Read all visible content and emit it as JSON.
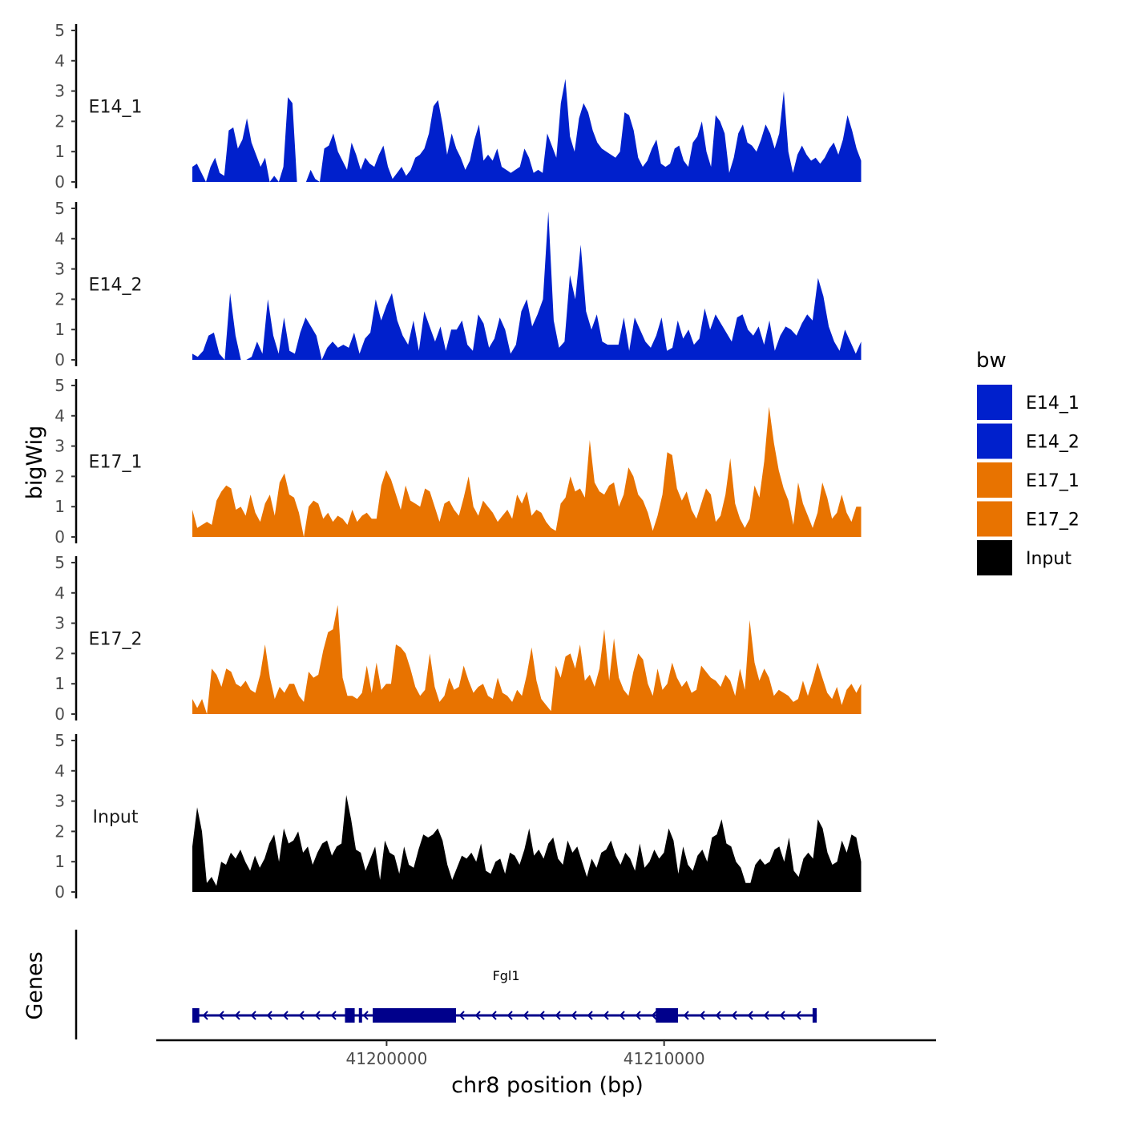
{
  "chart_data": {
    "type": "area",
    "title": "",
    "xlabel": "chr8 position (bp)",
    "ylabel": "bigWig",
    "xlim": [
      41191700,
      41219800
    ],
    "ylim": [
      0,
      5
    ],
    "y_ticks": [
      "0",
      "1",
      "2",
      "3",
      "4",
      "5"
    ],
    "x_ticks": [
      {
        "value": 41200000,
        "label": "41200000"
      },
      {
        "value": 41210000,
        "label": "41210000"
      }
    ],
    "data_range": [
      41193000,
      41217100
    ],
    "legend": {
      "title": "bw",
      "position": "right",
      "entries": [
        {
          "label": "E14_1",
          "color": "#0020CC"
        },
        {
          "label": "E14_2",
          "color": "#0020CC"
        },
        {
          "label": "E17_1",
          "color": "#E87300"
        },
        {
          "label": "E17_2",
          "color": "#E87300"
        },
        {
          "label": "Input",
          "color": "#000000"
        }
      ]
    },
    "series": [
      {
        "name": "E14_1",
        "color": "#0020CC",
        "values": [
          0.5,
          0.6,
          0.3,
          0,
          0.5,
          0.8,
          0.3,
          0.2,
          1.7,
          1.8,
          1.1,
          1.4,
          2.1,
          1.3,
          0.9,
          0.5,
          0.8,
          0,
          0.2,
          0,
          0.5,
          2.8,
          2.6,
          0,
          0,
          0,
          0.4,
          0.1,
          0,
          1.1,
          1.2,
          1.6,
          1.0,
          0.7,
          0.4,
          1.3,
          0.9,
          0.4,
          0.8,
          0.6,
          0.5,
          0.9,
          1.2,
          0.5,
          0.1,
          0.3,
          0.5,
          0.2,
          0.4,
          0.8,
          0.9,
          1.1,
          1.6,
          2.5,
          2.7,
          1.9,
          0.9,
          1.6,
          1.1,
          0.8,
          0.4,
          0.7,
          1.4,
          1.9,
          0.7,
          0.9,
          0.7,
          1.1,
          0.5,
          0.4,
          0.3,
          0.4,
          0.5,
          1.1,
          0.8,
          0.3,
          0.4,
          0.3,
          1.6,
          1.2,
          0.8,
          2.6,
          3.4,
          1.5,
          1.0,
          2.1,
          2.6,
          2.3,
          1.7,
          1.3,
          1.1,
          1.0,
          0.9,
          0.8,
          1.0,
          2.3,
          2.2,
          1.7,
          0.8,
          0.5,
          0.7,
          1.1,
          1.4,
          0.6,
          0.5,
          0.6,
          1.1,
          1.2,
          0.7,
          0.5,
          1.3,
          1.5,
          2.0,
          1.0,
          0.5,
          2.2,
          2.0,
          1.6,
          0.3,
          0.8,
          1.6,
          1.9,
          1.3,
          1.2,
          1.0,
          1.4,
          1.9,
          1.6,
          1.1,
          1.6,
          3.0,
          1.0,
          0.3,
          0.9,
          1.2,
          0.9,
          0.7,
          0.8,
          0.6,
          0.8,
          1.1,
          1.3,
          0.9,
          1.4,
          2.2,
          1.7,
          1.1,
          0.7
        ],
        "label": "E14_1"
      },
      {
        "name": "E14_2",
        "color": "#0020CC",
        "values": [
          0.2,
          0.1,
          0.3,
          0.8,
          0.9,
          0.2,
          0,
          2.2,
          0.8,
          0,
          0,
          0.1,
          0.6,
          0.2,
          2.0,
          0.8,
          0.2,
          1.4,
          0.3,
          0.2,
          0.9,
          1.4,
          1.1,
          0.8,
          0,
          0.4,
          0.6,
          0.4,
          0.5,
          0.4,
          0.9,
          0.2,
          0.7,
          0.9,
          2.0,
          1.3,
          1.8,
          2.2,
          1.3,
          0.8,
          0.5,
          1.3,
          0.3,
          1.6,
          1.1,
          0.6,
          1.1,
          0.3,
          1.0,
          1.0,
          1.3,
          0.5,
          0.3,
          1.5,
          1.2,
          0.4,
          0.7,
          1.4,
          1.0,
          0.2,
          0.5,
          1.6,
          2.0,
          1.1,
          1.5,
          2.0,
          4.9,
          1.3,
          0.4,
          0.6,
          2.8,
          2.0,
          3.8,
          1.6,
          1.0,
          1.5,
          0.6,
          0.5,
          0.5,
          0.5,
          1.4,
          0.3,
          1.4,
          1.0,
          0.6,
          0.4,
          0.8,
          1.4,
          0.3,
          0.4,
          1.3,
          0.7,
          1.0,
          0.5,
          0.7,
          1.7,
          1.0,
          1.5,
          1.2,
          0.9,
          0.6,
          1.4,
          1.5,
          1.0,
          0.8,
          1.1,
          0.5,
          1.3,
          0.3,
          0.8,
          1.1,
          1.0,
          0.8,
          1.2,
          1.5,
          1.3,
          2.7,
          2.1,
          1.1,
          0.6,
          0.3,
          1.0,
          0.6,
          0.2,
          0.6
        ],
        "label": "E14_2"
      },
      {
        "name": "E17_1",
        "color": "#E87300",
        "values": [
          0.9,
          0.3,
          0.4,
          0.5,
          0.4,
          1.2,
          1.5,
          1.7,
          1.6,
          0.9,
          1.0,
          0.7,
          1.4,
          0.8,
          0.5,
          1.1,
          1.4,
          0.7,
          1.8,
          2.1,
          1.4,
          1.3,
          0.8,
          0,
          1.0,
          1.2,
          1.1,
          0.6,
          0.8,
          0.5,
          0.7,
          0.6,
          0.4,
          0.9,
          0.5,
          0.7,
          0.8,
          0.6,
          0.6,
          1.7,
          2.2,
          1.9,
          1.4,
          0.9,
          1.7,
          1.2,
          1.1,
          1.0,
          1.6,
          1.5,
          1.0,
          0.5,
          1.1,
          1.2,
          0.9,
          0.7,
          1.3,
          2.0,
          1.0,
          0.7,
          1.2,
          1.0,
          0.8,
          0.5,
          0.7,
          0.9,
          0.6,
          1.4,
          1.1,
          1.5,
          0.7,
          0.9,
          0.8,
          0.5,
          0.3,
          0.2,
          1.1,
          1.3,
          2.0,
          1.5,
          1.6,
          1.3,
          3.2,
          1.8,
          1.5,
          1.4,
          1.7,
          1.8,
          1.0,
          1.4,
          2.3,
          2.0,
          1.4,
          1.2,
          0.8,
          0.2,
          0.7,
          1.4,
          2.8,
          2.7,
          1.6,
          1.2,
          1.5,
          0.9,
          0.6,
          1.1,
          1.6,
          1.4,
          0.5,
          0.7,
          1.4,
          2.6,
          1.1,
          0.6,
          0.3,
          0.6,
          1.7,
          1.3,
          2.5,
          4.3,
          3.1,
          2.2,
          1.6,
          1.2,
          0.4,
          1.8,
          1.1,
          0.7,
          0.3,
          0.8,
          1.8,
          1.3,
          0.6,
          0.8,
          1.4,
          0.8,
          0.5,
          1.0,
          1.0
        ],
        "label": "E17_1"
      },
      {
        "name": "E17_2",
        "color": "#E87300",
        "values": [
          0.5,
          0.2,
          0.5,
          0,
          1.5,
          1.3,
          0.9,
          1.5,
          1.4,
          1.0,
          0.9,
          1.1,
          0.8,
          0.7,
          1.3,
          2.3,
          1.2,
          0.5,
          0.9,
          0.7,
          1.0,
          1.0,
          0.6,
          0.4,
          1.4,
          1.2,
          1.3,
          2.1,
          2.7,
          2.8,
          3.6,
          1.2,
          0.6,
          0.6,
          0.5,
          0.7,
          1.6,
          0.7,
          1.7,
          0.8,
          1.0,
          1.0,
          2.3,
          2.2,
          2.0,
          1.5,
          0.9,
          0.6,
          0.8,
          2.0,
          0.9,
          0.4,
          0.6,
          1.2,
          0.8,
          0.9,
          1.6,
          1.1,
          0.7,
          0.9,
          1.0,
          0.6,
          0.5,
          1.2,
          0.7,
          0.6,
          0.4,
          0.8,
          0.6,
          1.3,
          2.2,
          1.1,
          0.5,
          0.3,
          0.1,
          1.6,
          1.2,
          1.9,
          2.0,
          1.5,
          2.3,
          1.1,
          1.3,
          0.9,
          1.5,
          2.8,
          1.1,
          2.5,
          1.2,
          0.8,
          0.6,
          1.4,
          2.0,
          1.8,
          1.0,
          0.6,
          1.5,
          0.8,
          1.0,
          1.7,
          1.2,
          0.9,
          1.1,
          0.7,
          0.8,
          1.6,
          1.4,
          1.2,
          1.1,
          0.9,
          1.3,
          1.1,
          0.6,
          1.5,
          0.8,
          3.1,
          1.7,
          1.1,
          1.5,
          1.2,
          0.6,
          0.8,
          0.7,
          0.6,
          0.4,
          0.5,
          1.1,
          0.6,
          1.1,
          1.7,
          1.2,
          0.7,
          0.5,
          0.9,
          0.3,
          0.8,
          1.0,
          0.7,
          1.0
        ],
        "label": "E17_2"
      },
      {
        "name": "Input",
        "color": "#000000",
        "values": [
          1.5,
          2.8,
          2.0,
          0.3,
          0.5,
          0.2,
          1.0,
          0.9,
          1.3,
          1.1,
          1.4,
          1.0,
          0.7,
          1.2,
          0.8,
          1.1,
          1.6,
          1.9,
          1.0,
          2.1,
          1.6,
          1.7,
          2.0,
          1.3,
          1.5,
          0.9,
          1.3,
          1.6,
          1.7,
          1.2,
          1.5,
          1.6,
          3.2,
          2.4,
          1.4,
          1.3,
          0.7,
          1.1,
          1.5,
          0.4,
          1.7,
          1.3,
          1.2,
          0.6,
          1.5,
          0.9,
          0.8,
          1.4,
          1.9,
          1.8,
          1.9,
          2.1,
          1.7,
          0.9,
          0.4,
          0.8,
          1.2,
          1.1,
          1.3,
          1.0,
          1.6,
          0.7,
          0.6,
          1.0,
          1.1,
          0.6,
          1.3,
          1.2,
          0.9,
          1.4,
          2.1,
          1.2,
          1.4,
          1.1,
          1.6,
          1.8,
          1.1,
          0.9,
          1.7,
          1.3,
          1.5,
          1.0,
          0.5,
          1.1,
          0.8,
          1.3,
          1.4,
          1.7,
          1.2,
          0.9,
          1.3,
          1.1,
          0.7,
          1.6,
          0.8,
          1.0,
          1.4,
          1.1,
          1.3,
          2.1,
          1.7,
          0.6,
          1.5,
          0.9,
          0.7,
          1.2,
          1.4,
          1.0,
          1.8,
          1.9,
          2.4,
          1.6,
          1.5,
          1.0,
          0.8,
          0.3,
          0.3,
          0.9,
          1.1,
          0.9,
          1.0,
          1.4,
          1.5,
          1.0,
          1.8,
          0.7,
          0.5,
          1.1,
          1.3,
          1.1,
          2.4,
          2.1,
          1.3,
          0.9,
          1.0,
          1.7,
          1.3,
          1.9,
          1.8,
          1.0
        ],
        "label": "Input"
      }
    ],
    "genes": {
      "track_label": "Genes",
      "color": "#00008B",
      "strand": "-",
      "transcript": {
        "name": "Fgl1",
        "start": 41193000,
        "end": 41215500,
        "exons": [
          [
            41193000,
            41193250
          ],
          [
            41198500,
            41198850
          ],
          [
            41199000,
            41199100
          ],
          [
            41199500,
            41202500
          ],
          [
            41209700,
            41210500
          ],
          [
            41215350,
            41215500
          ]
        ]
      }
    }
  }
}
